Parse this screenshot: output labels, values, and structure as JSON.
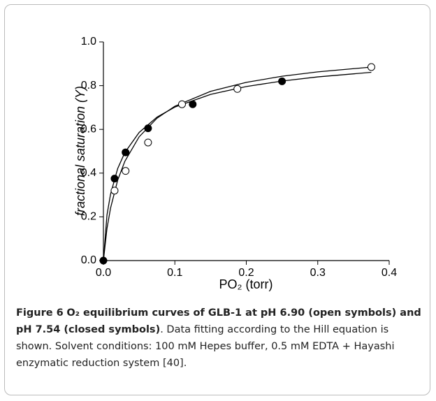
{
  "chart_data": {
    "type": "scatter",
    "xlabel": "PO₂ (torr)",
    "ylabel": "fractional saturation (Y)",
    "xlim": [
      0,
      0.4
    ],
    "ylim": [
      0,
      1.0
    ],
    "xticks": [
      {
        "value": 0,
        "label": "0.0"
      },
      0.1,
      0.2,
      0.3,
      0.4
    ],
    "yticks": [
      {
        "value": 0,
        "label": "0.0"
      },
      0.2,
      0.4,
      0.6,
      0.8,
      {
        "value": 1.0,
        "label": "1.0"
      }
    ],
    "series": [
      {
        "marker": "open",
        "color": "#000000",
        "x": [
          0.0156,
          0.031,
          0.0625,
          0.11,
          0.1875,
          0.375
        ],
        "values": [
          0.32,
          0.41,
          0.54,
          0.715,
          0.785,
          0.885
        ]
      },
      {
        "marker": "filled",
        "color": "#000000",
        "x": [
          0,
          0.0156,
          0.031,
          0.0625,
          0.125,
          0.25
        ],
        "values": [
          0,
          0.375,
          0.495,
          0.605,
          0.715,
          0.82
        ]
      },
      {
        "marker": "line",
        "color": "#000000",
        "x": [
          0,
          0.005,
          0.01,
          0.02,
          0.03,
          0.05,
          0.075,
          0.1,
          0.15,
          0.2,
          0.25,
          0.3,
          0.375
        ],
        "values": [
          0,
          0.147,
          0.24,
          0.368,
          0.454,
          0.566,
          0.651,
          0.706,
          0.774,
          0.815,
          0.843,
          0.863,
          0.885
        ]
      },
      {
        "marker": "line",
        "color": "#000000",
        "x": [
          0,
          0.005,
          0.01,
          0.02,
          0.03,
          0.05,
          0.075,
          0.1,
          0.15,
          0.2,
          0.25,
          0.3,
          0.375
        ],
        "values": [
          0,
          0.209,
          0.304,
          0.421,
          0.494,
          0.586,
          0.656,
          0.702,
          0.76,
          0.796,
          0.821,
          0.84,
          0.861
        ]
      }
    ]
  },
  "caption": {
    "label": "Figure 6",
    "title": "O₂ equilibrium curves of GLB-1 at pH 6.90 (open symbols) and pH 7.54 (closed symbols)",
    "text": ". Data fitting according to the Hill equation is shown. Solvent conditions: 100 mM Hepes buffer, 0.5 mM EDTA + Hayashi enzymatic reduction system [40]."
  }
}
